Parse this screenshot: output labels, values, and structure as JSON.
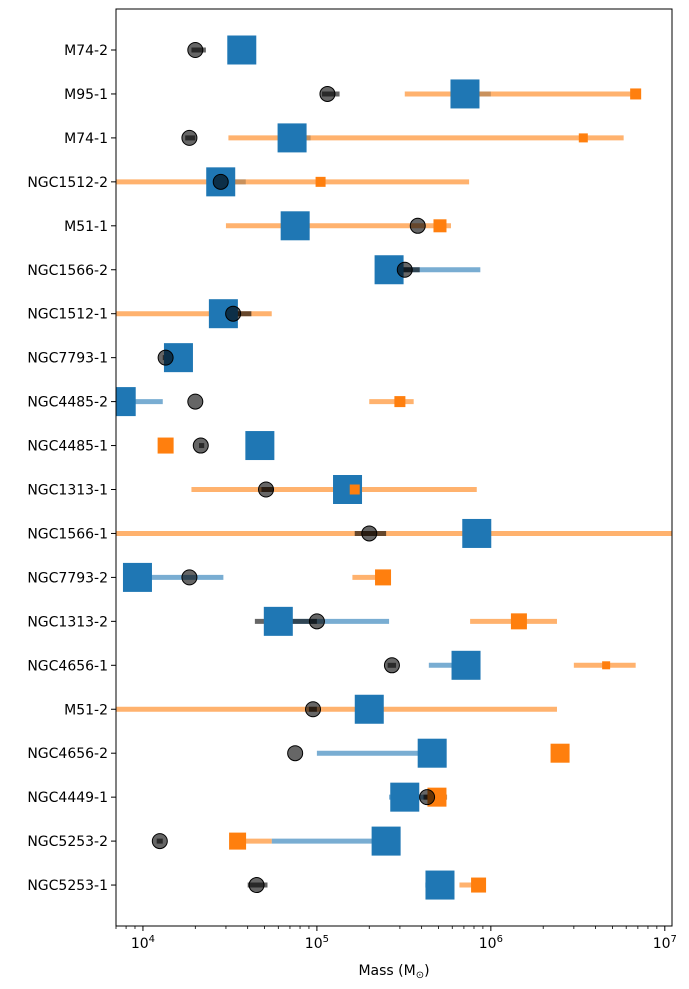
{
  "chart_data": {
    "type": "scatter",
    "xscale": "log",
    "xlim": [
      7000,
      11000000
    ],
    "xlabel": "Mass (M",
    "xlabel_sub": "⊙",
    "xlabel_close": ")",
    "x_ticks": [
      {
        "value": 10000,
        "base": "10",
        "exp": "4"
      },
      {
        "value": 100000,
        "base": "10",
        "exp": "5"
      },
      {
        "value": 1000000,
        "base": "10",
        "exp": "6"
      },
      {
        "value": 10000000,
        "base": "10",
        "exp": "7"
      }
    ],
    "categories": [
      "M74-2",
      "M95-1",
      "M74-1",
      "NGC1512-2",
      "M51-1",
      "NGC1566-2",
      "NGC1512-1",
      "NGC7793-1",
      "NGC4485-2",
      "NGC4485-1",
      "NGC1313-1",
      "NGC1566-1",
      "NGC7793-2",
      "NGC1313-2",
      "NGC4656-1",
      "M51-2",
      "NGC4656-2",
      "NGC4449-1",
      "NGC5253-2",
      "NGC5253-1"
    ],
    "colors": {
      "blue": "#1f77b4",
      "orange": "#ff7f0e",
      "black": "#000000"
    },
    "series": [
      {
        "marker": "large-square",
        "color": "#1f77b4",
        "points": [
          {
            "x": 37000,
            "lo": null,
            "hi": null
          },
          {
            "x": 710000,
            "lo": 590000,
            "hi": 1000000
          },
          {
            "x": 72000,
            "lo": 62000,
            "hi": 92000
          },
          {
            "x": 28000,
            "lo": 24000,
            "hi": 39000
          },
          {
            "x": 75000,
            "lo": null,
            "hi": null
          },
          {
            "x": 260000,
            "lo": 230000,
            "hi": 870000
          },
          {
            "x": 29000,
            "lo": null,
            "hi": null
          },
          {
            "x": 16000,
            "lo": null,
            "hi": null
          },
          {
            "x": 7500,
            "lo": 7000,
            "hi": 13000
          },
          {
            "x": 47000,
            "lo": null,
            "hi": null
          },
          {
            "x": 150000,
            "lo": null,
            "hi": null
          },
          {
            "x": 830000,
            "lo": null,
            "hi": null
          },
          {
            "x": 9300,
            "lo": 9300,
            "hi": 29000
          },
          {
            "x": 60000,
            "lo": 55000,
            "hi": 260000
          },
          {
            "x": 720000,
            "lo": 440000,
            "hi": 870000
          },
          {
            "x": 200000,
            "lo": null,
            "hi": null
          },
          {
            "x": 460000,
            "lo": 100000,
            "hi": 460000
          },
          {
            "x": 320000,
            "lo": 260000,
            "hi": 560000
          },
          {
            "x": 250000,
            "lo": 55000,
            "hi": 250000
          },
          {
            "x": 510000,
            "lo": 420000,
            "hi": 510000
          }
        ]
      },
      {
        "marker": "small-square",
        "color": "#ff7f0e",
        "points": [
          null,
          {
            "x": 6800000,
            "lo": 320000,
            "hi": 6800000
          },
          {
            "x": 3400000,
            "lo": 31000,
            "hi": 5800000
          },
          {
            "x": 105000,
            "lo": 7000,
            "hi": 750000
          },
          {
            "x": 510000,
            "lo": 30000,
            "hi": 590000
          },
          null,
          {
            "x": null,
            "lo": 7000,
            "hi": 55000
          },
          null,
          {
            "x": 300000,
            "lo": 200000,
            "hi": 360000
          },
          {
            "x": 13500,
            "lo": null,
            "hi": null
          },
          {
            "x": 165000,
            "lo": 19000,
            "hi": 830000
          },
          {
            "x": null,
            "lo": 7000,
            "hi": 11000000
          },
          {
            "x": 240000,
            "lo": 160000,
            "hi": 240000
          },
          {
            "x": 1450000,
            "lo": 760000,
            "hi": 2400000
          },
          {
            "x": 4600000,
            "lo": 3000000,
            "hi": 6800000
          },
          {
            "x": null,
            "lo": 7000,
            "hi": 2400000
          },
          {
            "x": 2500000,
            "lo": null,
            "hi": null
          },
          {
            "x": 490000,
            "lo": 420000,
            "hi": 560000
          },
          {
            "x": 35000,
            "lo": 35000,
            "hi": 55000
          },
          {
            "x": 850000,
            "lo": 660000,
            "hi": 850000
          }
        ]
      },
      {
        "marker": "circle",
        "color": "#000000",
        "points": [
          {
            "x": 20000,
            "lo": 19000,
            "hi": 23000
          },
          {
            "x": 115000,
            "lo": 107000,
            "hi": 135000
          },
          {
            "x": 18500,
            "lo": 17500,
            "hi": 20000
          },
          {
            "x": 28000,
            "lo": null,
            "hi": null
          },
          {
            "x": 380000,
            "lo": null,
            "hi": null
          },
          {
            "x": 320000,
            "lo": 290000,
            "hi": 390000
          },
          {
            "x": 33000,
            "lo": 25000,
            "hi": 42000
          },
          {
            "x": 13500,
            "lo": 13000,
            "hi": 17000
          },
          {
            "x": 20000,
            "lo": null,
            "hi": null
          },
          {
            "x": 21500,
            "lo": 21000,
            "hi": 22500
          },
          {
            "x": 51000,
            "lo": 48000,
            "hi": 56000
          },
          {
            "x": 200000,
            "lo": 165000,
            "hi": 250000
          },
          {
            "x": 18500,
            "lo": null,
            "hi": null
          },
          {
            "x": 100000,
            "lo": 44000,
            "hi": 100000
          },
          {
            "x": 270000,
            "lo": 255000,
            "hi": 285000
          },
          {
            "x": 95000,
            "lo": 90000,
            "hi": 100000
          },
          {
            "x": 75000,
            "lo": null,
            "hi": null
          },
          {
            "x": 430000,
            "lo": 410000,
            "hi": 450000
          },
          {
            "x": 12500,
            "lo": 12000,
            "hi": 13000
          },
          {
            "x": 45000,
            "lo": 40000,
            "hi": 52000
          }
        ]
      }
    ]
  }
}
